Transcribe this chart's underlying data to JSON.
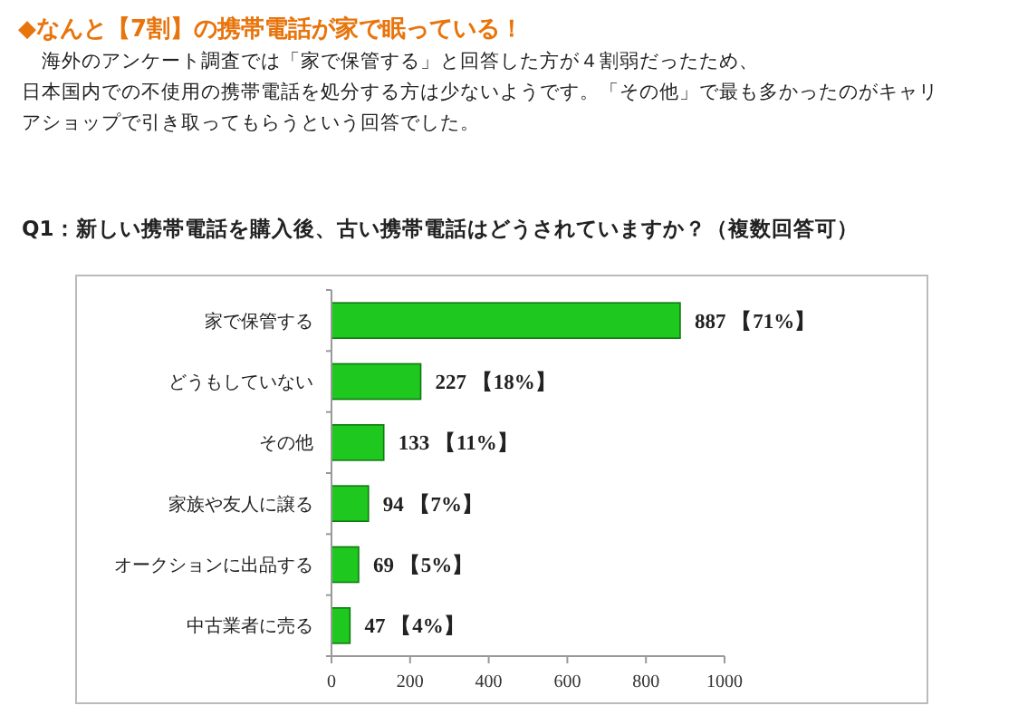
{
  "chart_data": {
    "type": "bar",
    "orientation": "horizontal",
    "title": "◆なんと【7割】の携帯電話が家で眠っている！",
    "annotations": [
      "　海外のアンケート調査では「家で保管する」と回答した方が４割弱だったため、",
      "日本国内での不使用の携帯電話を処分する方は少ないようです。「その他」で最も多かったのがキャリ",
      "アショップで引き取ってもらうという回答でした。"
    ],
    "subtitle": "Q1：新しい携帯電話を購入後、古い携帯電話はどうされていますか？（複数回答可）",
    "categories": [
      "家で保管する",
      "どうもしていない",
      "その他",
      "家族や友人に譲る",
      "オークションに出品する",
      "中古業者に売る"
    ],
    "values": [
      887,
      227,
      133,
      94,
      69,
      47
    ],
    "value_labels": [
      "887 【71%】",
      "227 【18%】",
      "133 【11%】",
      "94 【7%】",
      "69 【5%】",
      "47 【4%】"
    ],
    "color": "#1ec81e",
    "xlim": [
      0,
      1000
    ],
    "xticks": [
      0,
      200,
      400,
      600,
      800,
      1000
    ],
    "grid": false
  }
}
